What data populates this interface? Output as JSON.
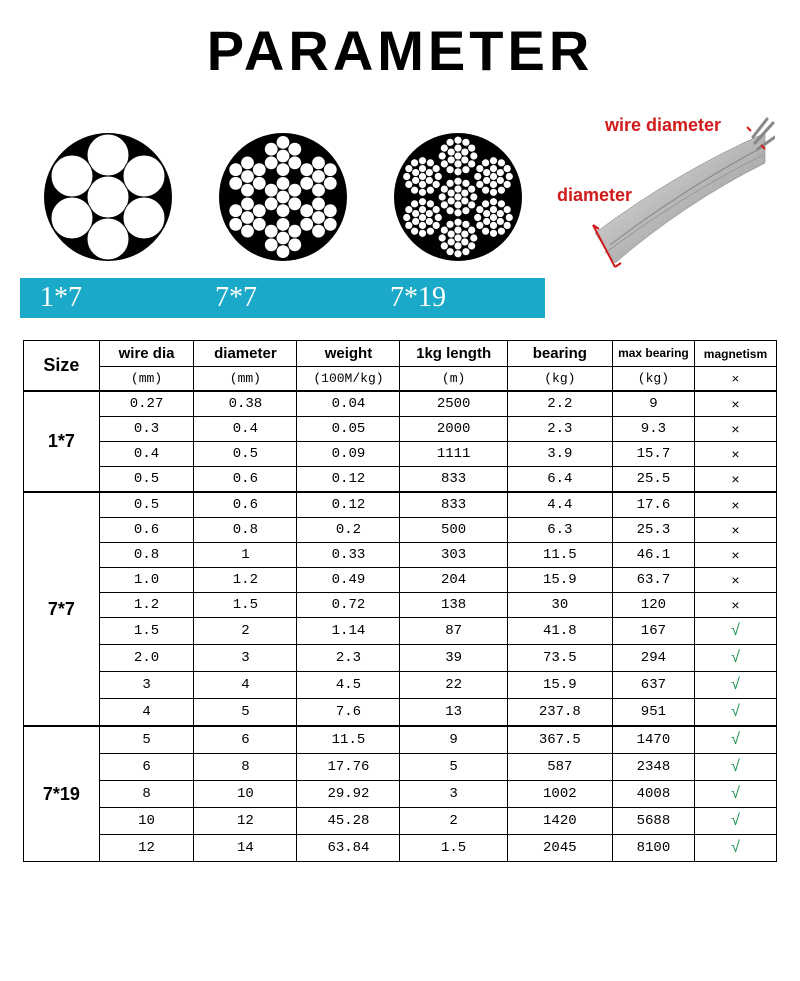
{
  "title": "PARAMETER",
  "diagram_labels": {
    "d1": "1*7",
    "d2": "7*7",
    "d3": "7*19"
  },
  "wire_labels": {
    "wd": "wire diameter",
    "d": "diameter"
  },
  "table": {
    "header_main": [
      "wire dia",
      "diameter",
      "weight",
      "1kg length",
      "bearing",
      "max bearing",
      "magnetism"
    ],
    "header_units": [
      "(mm)",
      "(mm)",
      "(100M/kg)",
      "(m)",
      "(kg)",
      "(kg)",
      "×"
    ],
    "size_label": "Size",
    "groups": [
      {
        "size": "1*7",
        "rows": [
          [
            "0.27",
            "0.38",
            "0.04",
            "2500",
            "2.2",
            "9",
            "×"
          ],
          [
            "0.3",
            "0.4",
            "0.05",
            "2000",
            "2.3",
            "9.3",
            "×"
          ],
          [
            "0.4",
            "0.5",
            "0.09",
            "1111",
            "3.9",
            "15.7",
            "×"
          ],
          [
            "0.5",
            "0.6",
            "0.12",
            "833",
            "6.4",
            "25.5",
            "×"
          ]
        ]
      },
      {
        "size": "7*7",
        "rows": [
          [
            "0.5",
            "0.6",
            "0.12",
            "833",
            "4.4",
            "17.6",
            "×"
          ],
          [
            "0.6",
            "0.8",
            "0.2",
            "500",
            "6.3",
            "25.3",
            "×"
          ],
          [
            "0.8",
            "1",
            "0.33",
            "303",
            "11.5",
            "46.1",
            "×"
          ],
          [
            "1.0",
            "1.2",
            "0.49",
            "204",
            "15.9",
            "63.7",
            "×"
          ],
          [
            "1.2",
            "1.5",
            "0.72",
            "138",
            "30",
            "120",
            "×"
          ],
          [
            "1.5",
            "2",
            "1.14",
            "87",
            "41.8",
            "167",
            "√"
          ],
          [
            "2.0",
            "3",
            "2.3",
            "39",
            "73.5",
            "294",
            "√"
          ],
          [
            "3",
            "4",
            "4.5",
            "22",
            "15.9",
            "637",
            "√"
          ],
          [
            "4",
            "5",
            "7.6",
            "13",
            "237.8",
            "951",
            "√"
          ]
        ]
      },
      {
        "size": "7*19",
        "rows": [
          [
            "5",
            "6",
            "11.5",
            "9",
            "367.5",
            "1470",
            "√"
          ],
          [
            "6",
            "8",
            "17.76",
            "5",
            "587",
            "2348",
            "√"
          ],
          [
            "8",
            "10",
            "29.92",
            "3",
            "1002",
            "4008",
            "√"
          ],
          [
            "10",
            "12",
            "45.28",
            "2",
            "1420",
            "5688",
            "√"
          ],
          [
            "12",
            "14",
            "63.84",
            "1.5",
            "2045",
            "8100",
            "√"
          ]
        ]
      }
    ]
  },
  "colors": {
    "label_bg": "#1aa9c9",
    "label_fg": "#ffffff",
    "border": "#000000",
    "tick": "#16934a",
    "wire_label": "#d11a1a"
  }
}
